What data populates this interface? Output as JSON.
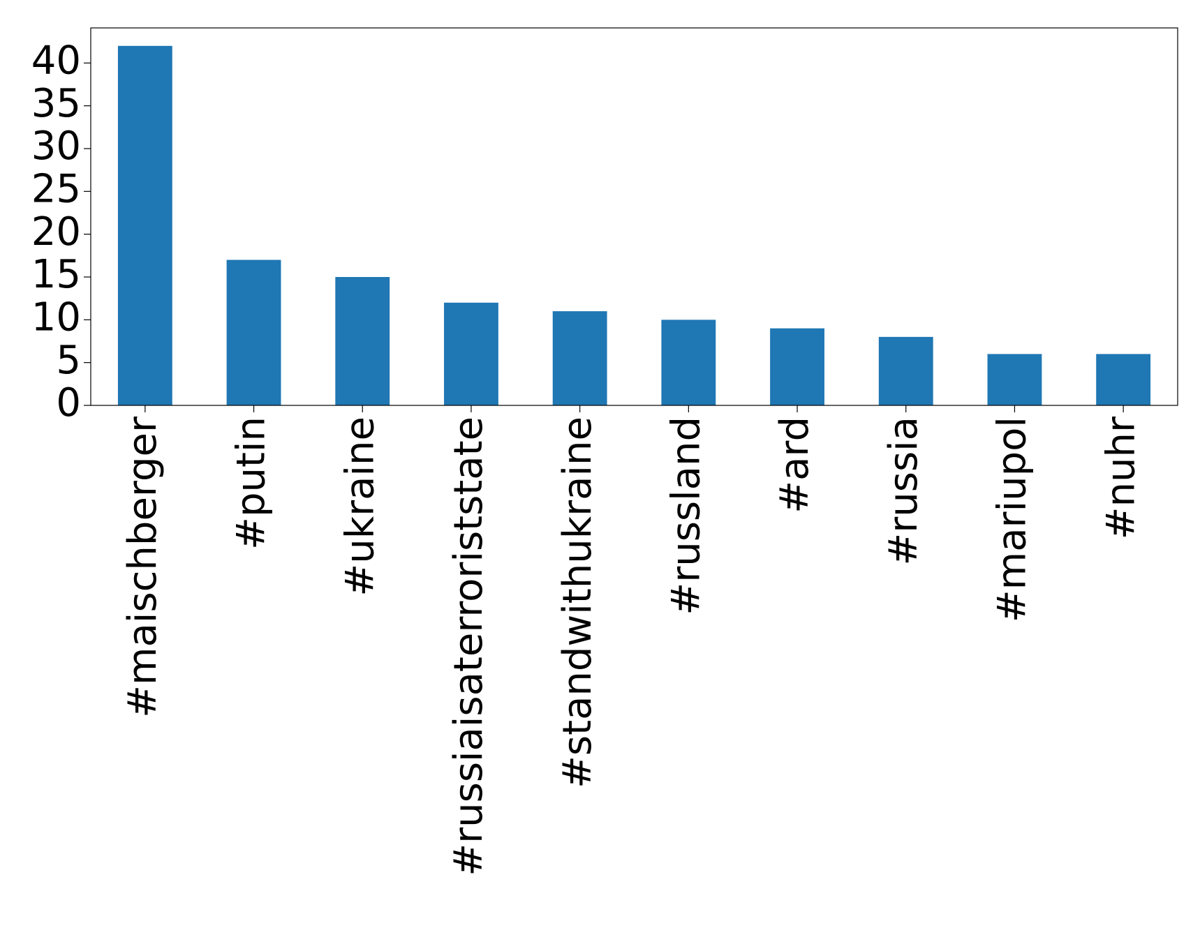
{
  "chart_data": {
    "type": "bar",
    "categories": [
      "#maischberger",
      "#putin",
      "#ukraine",
      "#russiaisaterroriststate",
      "#standwithukraine",
      "#russland",
      "#ard",
      "#russia",
      "#mariupol",
      "#nuhr"
    ],
    "values": [
      42,
      17,
      15,
      12,
      11,
      10,
      9,
      8,
      6,
      6
    ],
    "color": "#1f77b4",
    "ylim": [
      0,
      44.1
    ],
    "yticks": [
      0,
      5,
      10,
      15,
      20,
      25,
      30,
      35,
      40
    ],
    "grid": false
  }
}
